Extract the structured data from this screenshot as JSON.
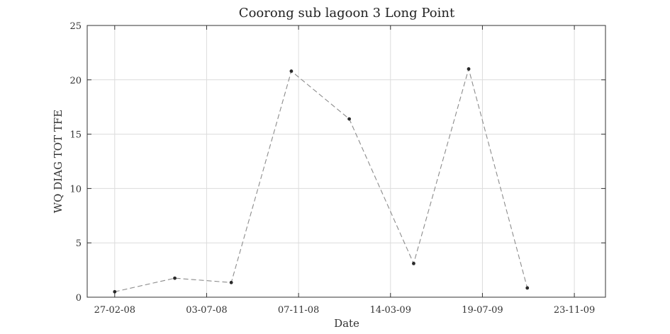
{
  "chart_data": {
    "type": "line",
    "title": "Coorong sub lagoon 3 Long Point",
    "xlabel": "Date",
    "ylabel": "WQ DIAG TOT TFE",
    "ylim": [
      0,
      25
    ],
    "yticks": [
      0,
      5,
      10,
      15,
      20,
      25
    ],
    "xlim_days": [
      -38,
      678
    ],
    "xticks": [
      {
        "label": "27-02-08",
        "day": 0
      },
      {
        "label": "03-07-08",
        "day": 127
      },
      {
        "label": "07-11-08",
        "day": 254
      },
      {
        "label": "14-03-09",
        "day": 381
      },
      {
        "label": "19-07-09",
        "day": 508
      },
      {
        "label": "23-11-09",
        "day": 635
      }
    ],
    "grid": true,
    "series": [
      {
        "name": "WQ DIAG TOT TFE",
        "x_days": [
          0,
          83,
          161,
          244,
          324,
          413,
          489,
          570
        ],
        "values": [
          0.5,
          1.75,
          1.35,
          20.8,
          16.4,
          3.1,
          21.0,
          0.85
        ]
      }
    ]
  }
}
